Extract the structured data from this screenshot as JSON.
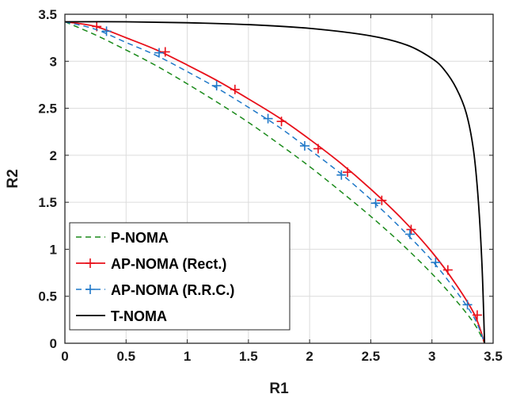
{
  "chart_data": {
    "type": "line",
    "title": "",
    "xlabel": "R1",
    "ylabel": "R2",
    "xlim": [
      0,
      3.5
    ],
    "ylim": [
      0,
      3.5
    ],
    "xticks": [
      "0",
      "0.5",
      "1",
      "1.5",
      "2",
      "2.5",
      "3",
      "3.5"
    ],
    "yticks": [
      "0",
      "0.5",
      "1",
      "1.5",
      "2",
      "2.5",
      "3",
      "3.5"
    ],
    "grid": true,
    "legend_position": "bottom-left",
    "series": [
      {
        "name": "P-NOMA",
        "color": "#1a8a1a",
        "style": "dashed",
        "marker": "none",
        "x": [
          0,
          0.25,
          0.5,
          0.75,
          1.0,
          1.25,
          1.5,
          1.75,
          2.0,
          2.25,
          2.5,
          2.75,
          3.0,
          3.2,
          3.35,
          3.43
        ],
        "y": [
          3.42,
          3.28,
          3.12,
          2.95,
          2.76,
          2.56,
          2.35,
          2.12,
          1.88,
          1.62,
          1.35,
          1.06,
          0.74,
          0.45,
          0.2,
          0
        ]
      },
      {
        "name": "AP-NOMA (Rect.)",
        "color": "#e8101a",
        "style": "solid",
        "marker": "plus",
        "x": [
          0,
          0.25,
          0.5,
          0.75,
          1.0,
          1.25,
          1.5,
          1.75,
          2.0,
          2.25,
          2.5,
          2.75,
          3.0,
          3.2,
          3.35,
          3.43
        ],
        "y": [
          3.42,
          3.37,
          3.25,
          3.12,
          2.96,
          2.79,
          2.6,
          2.4,
          2.17,
          1.92,
          1.64,
          1.33,
          0.97,
          0.62,
          0.3,
          0
        ],
        "markers_x": [
          0.26,
          0.82,
          1.39,
          1.77,
          2.07,
          2.31,
          2.59,
          2.83,
          3.13,
          3.37
        ],
        "markers_y": [
          3.37,
          3.1,
          2.7,
          2.36,
          2.07,
          1.82,
          1.52,
          1.21,
          0.78,
          0.3
        ]
      },
      {
        "name": "AP-NOMA (R.R.C.)",
        "color": "#1f78c8",
        "style": "dashed",
        "marker": "plus",
        "x": [
          0,
          0.25,
          0.5,
          0.75,
          1.0,
          1.25,
          1.5,
          1.75,
          2.0,
          2.25,
          2.5,
          2.75,
          3.0,
          3.2,
          3.35,
          3.43
        ],
        "y": [
          3.42,
          3.34,
          3.2,
          3.06,
          2.89,
          2.71,
          2.51,
          2.3,
          2.06,
          1.81,
          1.53,
          1.22,
          0.88,
          0.55,
          0.26,
          0
        ],
        "markers_x": [
          0.34,
          0.77,
          1.24,
          1.66,
          1.96,
          2.26,
          2.54,
          2.82,
          3.03,
          3.29
        ],
        "markers_y": [
          3.32,
          3.09,
          2.74,
          2.39,
          2.1,
          1.79,
          1.49,
          1.16,
          0.86,
          0.41
        ]
      },
      {
        "name": "T-NOMA",
        "color": "#000000",
        "style": "solid",
        "marker": "none",
        "x": [
          0,
          0.5,
          1.0,
          1.5,
          2.0,
          2.5,
          2.8,
          3.0,
          3.1,
          3.2,
          3.28,
          3.34,
          3.38,
          3.41,
          3.43
        ],
        "y": [
          3.42,
          3.42,
          3.41,
          3.39,
          3.35,
          3.27,
          3.17,
          3.03,
          2.91,
          2.71,
          2.45,
          2.05,
          1.5,
          0.8,
          0
        ]
      }
    ]
  }
}
